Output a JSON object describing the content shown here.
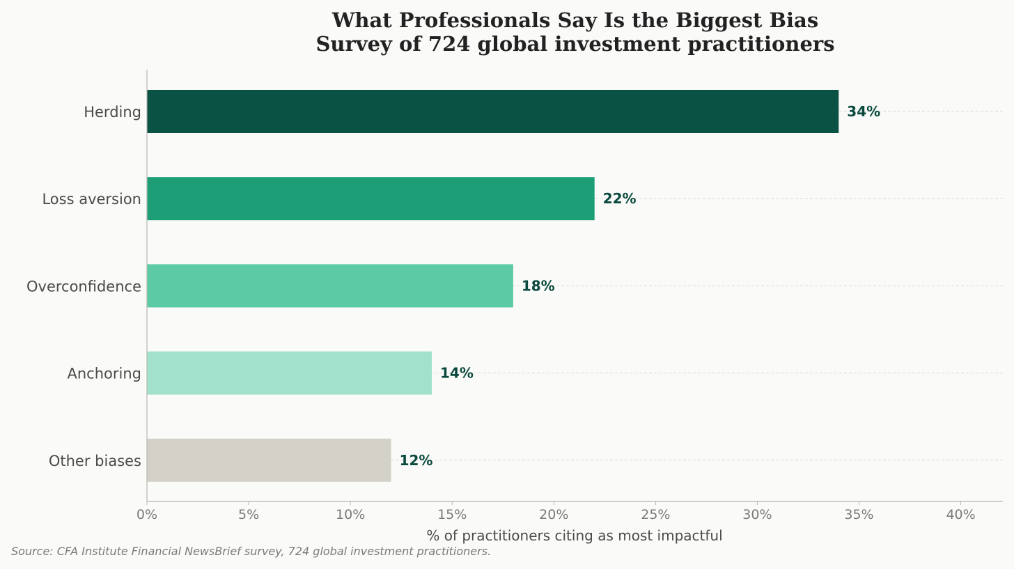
{
  "chart_data": {
    "type": "bar",
    "orientation": "horizontal",
    "title": "What Professionals Say Is the Biggest Bias",
    "subtitle": "Survey of 724 global investment practitioners",
    "xlabel": "% of practitioners citing as most impactful",
    "ylabel": "",
    "categories": [
      "Herding",
      "Loss aversion",
      "Overconfidence",
      "Anchoring",
      "Other biases"
    ],
    "values": [
      34,
      22,
      18,
      14,
      12
    ],
    "value_labels": [
      "34%",
      "22%",
      "18%",
      "14%",
      "12%"
    ],
    "bar_colors": [
      "#0a5244",
      "#1e9e76",
      "#5ccaa5",
      "#a2e2cc",
      "#d4d1c8"
    ],
    "xlim": [
      0,
      42
    ],
    "x_ticks": [
      0,
      5,
      10,
      15,
      20,
      25,
      30,
      35,
      40
    ],
    "x_tick_labels": [
      "0%",
      "5%",
      "10%",
      "15%",
      "20%",
      "25%",
      "30%",
      "35%",
      "40%"
    ],
    "grid": "horizontal dashed at bars",
    "source": "Source: CFA Institute Financial NewsBrief survey, 724 global investment practitioners."
  }
}
